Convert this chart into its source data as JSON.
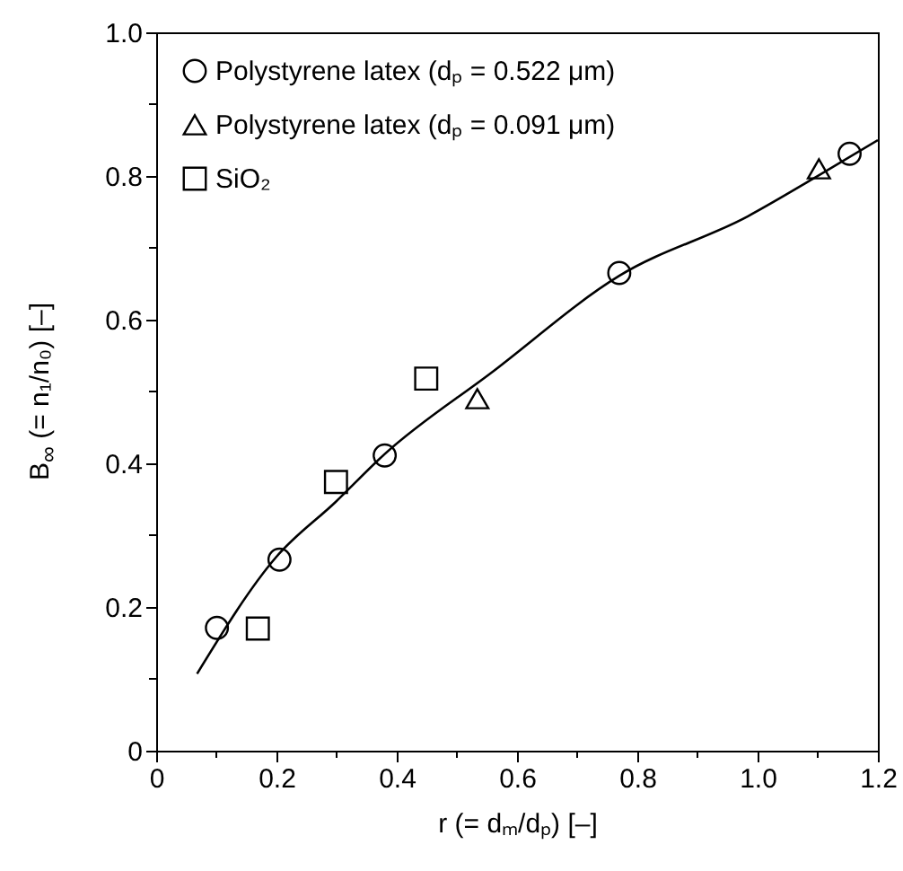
{
  "chart_data": {
    "type": "scatter",
    "xlabel": "r (= dₘ/dₚ) [–]",
    "ylabel": "B$_{∞}$ (= n₁/n₀) [–]",
    "xlim": [
      0,
      1.2
    ],
    "ylim": [
      0,
      1.0
    ],
    "xticks": [
      0,
      {
        "value": 0.1,
        "label": null
      },
      0.2,
      {
        "value": 0.3,
        "label": null
      },
      0.4,
      {
        "value": 0.5,
        "label": null
      },
      0.6,
      {
        "value": 0.7,
        "label": null
      },
      0.8,
      {
        "value": 0.9,
        "label": null
      },
      {
        "value": 1.0,
        "label": "1.0"
      },
      {
        "value": 1.1,
        "label": null
      },
      1.2
    ],
    "yticks": [
      0,
      {
        "value": 0.1,
        "label": null
      },
      0.2,
      {
        "value": 0.3,
        "label": null
      },
      0.4,
      {
        "value": 0.5,
        "label": null
      },
      0.6,
      {
        "value": 0.7,
        "label": null
      },
      0.8,
      {
        "value": 0.9,
        "label": null
      },
      {
        "value": 1.0,
        "label": "1.0"
      }
    ],
    "legend": "top left",
    "grid": false,
    "series": [
      {
        "name": "Polystyrene latex (dₚ = 0.522 μm)",
        "color": "#000000",
        "marker": "circle",
        "x": [
          0.101,
          0.205,
          0.38,
          0.77,
          1.153
        ],
        "values": [
          0.171,
          0.266,
          0.411,
          0.665,
          0.831
        ]
      },
      {
        "name": "Polystyrene latex (dₚ = 0.091 μm)",
        "color": "#000000",
        "marker": "triangle",
        "x": [
          0.534,
          1.102
        ],
        "values": [
          0.49,
          0.81
        ]
      },
      {
        "name": "SiO₂",
        "color": "#000000",
        "marker": "square",
        "x": [
          0.169,
          0.299,
          0.449
        ],
        "values": [
          0.17,
          0.374,
          0.518
        ]
      },
      {
        "type": "line",
        "color": "#000000",
        "marker": "none",
        "line_style": "solid",
        "x": [
          0.068,
          0.2,
          0.298,
          0.38,
          0.557,
          0.77,
          0.984,
          1.094,
          1.2
        ],
        "values": [
          0.107,
          0.27,
          0.346,
          0.413,
          0.526,
          0.661,
          0.744,
          0.797,
          0.85
        ]
      }
    ]
  }
}
